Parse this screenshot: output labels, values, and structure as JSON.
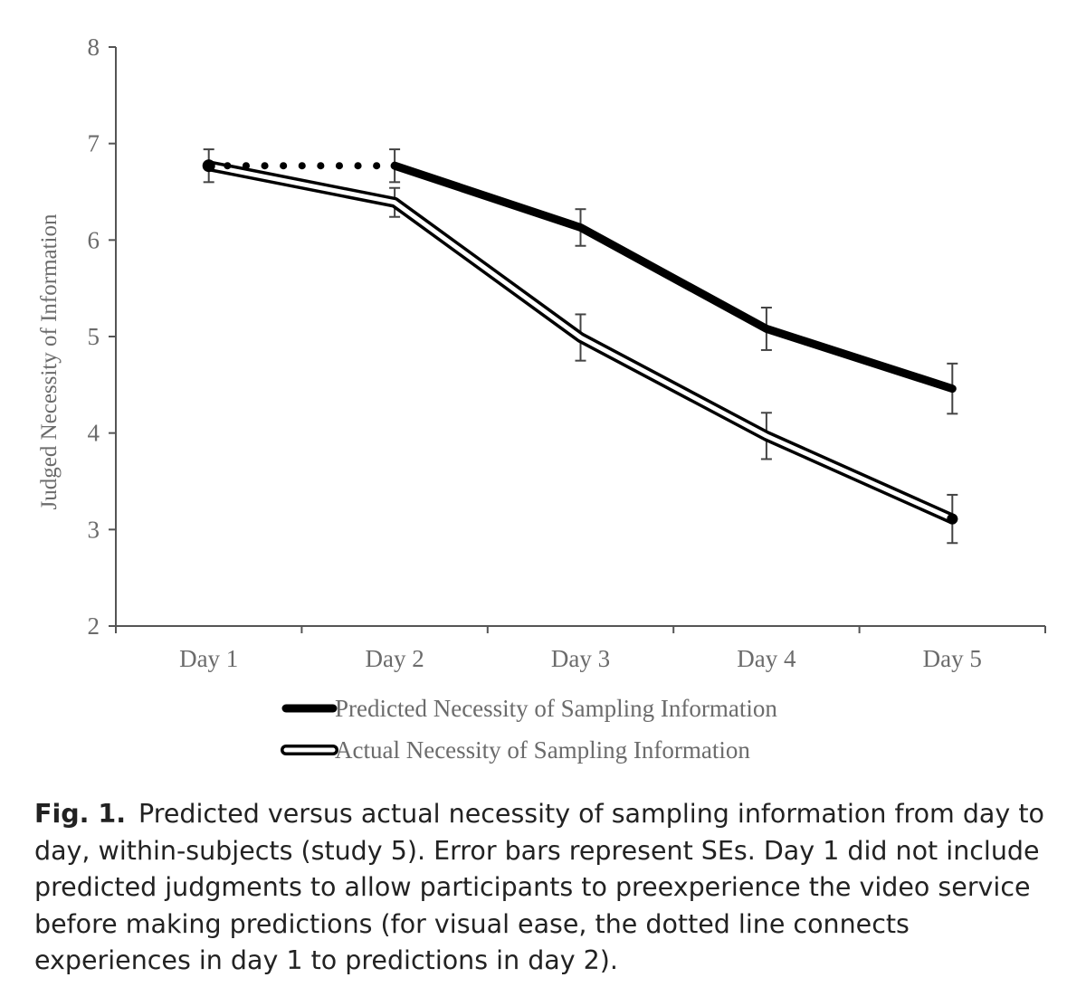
{
  "chart_data": {
    "type": "line",
    "categories": [
      "Day 1",
      "Day 2",
      "Day 3",
      "Day 4",
      "Day 5"
    ],
    "ylabel": "Judged Necessity of Information",
    "xlabel": "",
    "ylim": [
      2,
      8
    ],
    "yticks": [
      2,
      3,
      4,
      5,
      6,
      7,
      8
    ],
    "grid": false,
    "legend_position": "bottom",
    "series": [
      {
        "name": "Predicted Necessity of Sampling Information",
        "style": "solid-thick-black",
        "color": "#000000",
        "values": [
          null,
          6.77,
          6.13,
          5.08,
          4.46
        ],
        "errors": [
          null,
          0.17,
          0.19,
          0.22,
          0.26
        ]
      },
      {
        "name": "Actual Necessity of Sampling Information",
        "style": "double-outline",
        "color": "#000000",
        "values": [
          6.77,
          6.39,
          4.99,
          3.97,
          3.11
        ],
        "errors": [
          0.17,
          0.15,
          0.24,
          0.24,
          0.25
        ]
      }
    ],
    "connector": {
      "style": "dotted",
      "from": {
        "category": "Day 1",
        "value": 6.77
      },
      "to": {
        "category": "Day 2",
        "value": 6.77
      }
    }
  },
  "caption": {
    "label": "Fig. 1.",
    "text": "Predicted versus actual necessity of sampling information from day to day, within-subjects (study 5). Error bars represent SEs. Day 1 did not include predicted judgments to allow participants to preexperience the video service before making predictions (for visual ease, the dotted line connects experiences in day 1 to predictions in day 2)."
  }
}
